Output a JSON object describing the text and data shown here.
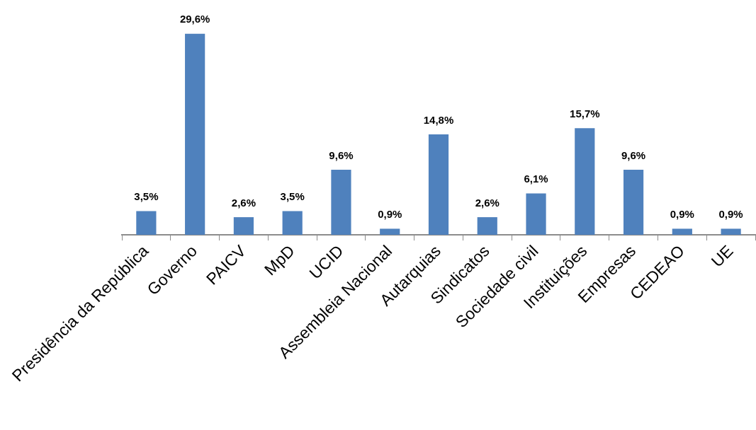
{
  "chart_data": {
    "type": "bar",
    "categories": [
      "Presidência da República",
      "Governo",
      "PAICV",
      "MpD",
      "UCID",
      "Assembleia Nacional",
      "Autarquias",
      "Sindicatos",
      "Sociedade civil",
      "Instituições",
      "Empresas",
      "CEDEAO",
      "UE"
    ],
    "values": [
      3.5,
      29.6,
      2.6,
      3.5,
      9.6,
      0.9,
      14.8,
      2.6,
      6.1,
      15.7,
      9.6,
      0.9,
      0.9
    ],
    "value_labels": [
      "3,5%",
      "29,6%",
      "2,6%",
      "3,5%",
      "9,6%",
      "0,9%",
      "14,8%",
      "2,6%",
      "6,1%",
      "15,7%",
      "9,6%",
      "0,9%",
      "0,9%"
    ],
    "color": "#4f81bd"
  }
}
